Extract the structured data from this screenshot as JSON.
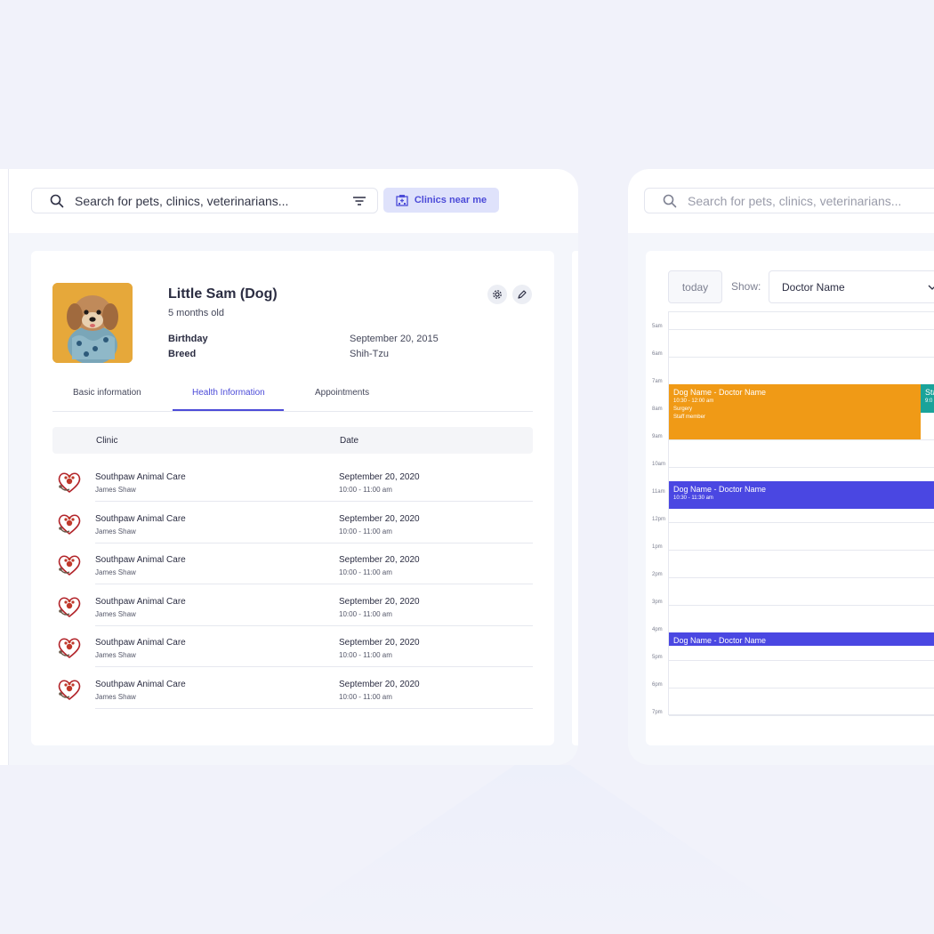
{
  "search": {
    "placeholder": "Search for pets, clinics, veterinarians..."
  },
  "clinics_near_me": "Clinics near me",
  "pet": {
    "name": "Little Sam (Dog)",
    "age": "5 months old",
    "fields": [
      {
        "label": "Birthday",
        "value": "September 20, 2015"
      },
      {
        "label": "Breed",
        "value": "Shih-Tzu"
      }
    ]
  },
  "tabs": [
    {
      "label": "Basic information",
      "active": false
    },
    {
      "label": "Health Information",
      "active": true
    },
    {
      "label": "Appointments",
      "active": false
    }
  ],
  "table": {
    "columns": [
      "Clinic",
      "Date"
    ],
    "rows": [
      {
        "clinic": "Southpaw Animal Care",
        "vet": "James Shaw",
        "date": "September 20, 2020",
        "time": "10:00 - 11:00 am"
      },
      {
        "clinic": "Southpaw Animal Care",
        "vet": "James Shaw",
        "date": "September 20, 2020",
        "time": "10:00 - 11:00 am"
      },
      {
        "clinic": "Southpaw Animal Care",
        "vet": "James Shaw",
        "date": "September 20, 2020",
        "time": "10:00 - 11:00 am"
      },
      {
        "clinic": "Southpaw Animal Care",
        "vet": "James Shaw",
        "date": "September 20, 2020",
        "time": "10:00 - 11:00 am"
      },
      {
        "clinic": "Southpaw Animal Care",
        "vet": "James Shaw",
        "date": "September 20, 2020",
        "time": "10:00 - 11:00 am"
      },
      {
        "clinic": "Southpaw Animal Care",
        "vet": "James Shaw",
        "date": "September 20, 2020",
        "time": "10:00 - 11:00 am"
      }
    ]
  },
  "calendar": {
    "today_label": "today",
    "show_label": "Show:",
    "doctor_select": "Doctor Name",
    "hours": [
      "5am",
      "6am",
      "7am",
      "8am",
      "9am",
      "10am",
      "11am",
      "12pm",
      "1pm",
      "2pm",
      "3pm",
      "4pm",
      "5pm",
      "6pm",
      "7pm"
    ],
    "events": [
      {
        "title": "Dog Name - Doctor Name",
        "time": "10:30 - 12:00 am",
        "type": "Surgery",
        "staff": "Staff member",
        "color": "#f09a16"
      },
      {
        "title": "Sta",
        "time": "9:0",
        "color": "#1aa39a"
      },
      {
        "title": "Dog Name - Doctor Name",
        "time": "10:30 - 11:30 am",
        "color": "#4a47e2"
      },
      {
        "title": "Dog Name - Doctor Name",
        "color": "#4a47e2"
      }
    ]
  },
  "colors": {
    "accent": "#4c4bd8",
    "orange": "#f09a16",
    "teal": "#1aa39a",
    "blue": "#4a47e2"
  }
}
